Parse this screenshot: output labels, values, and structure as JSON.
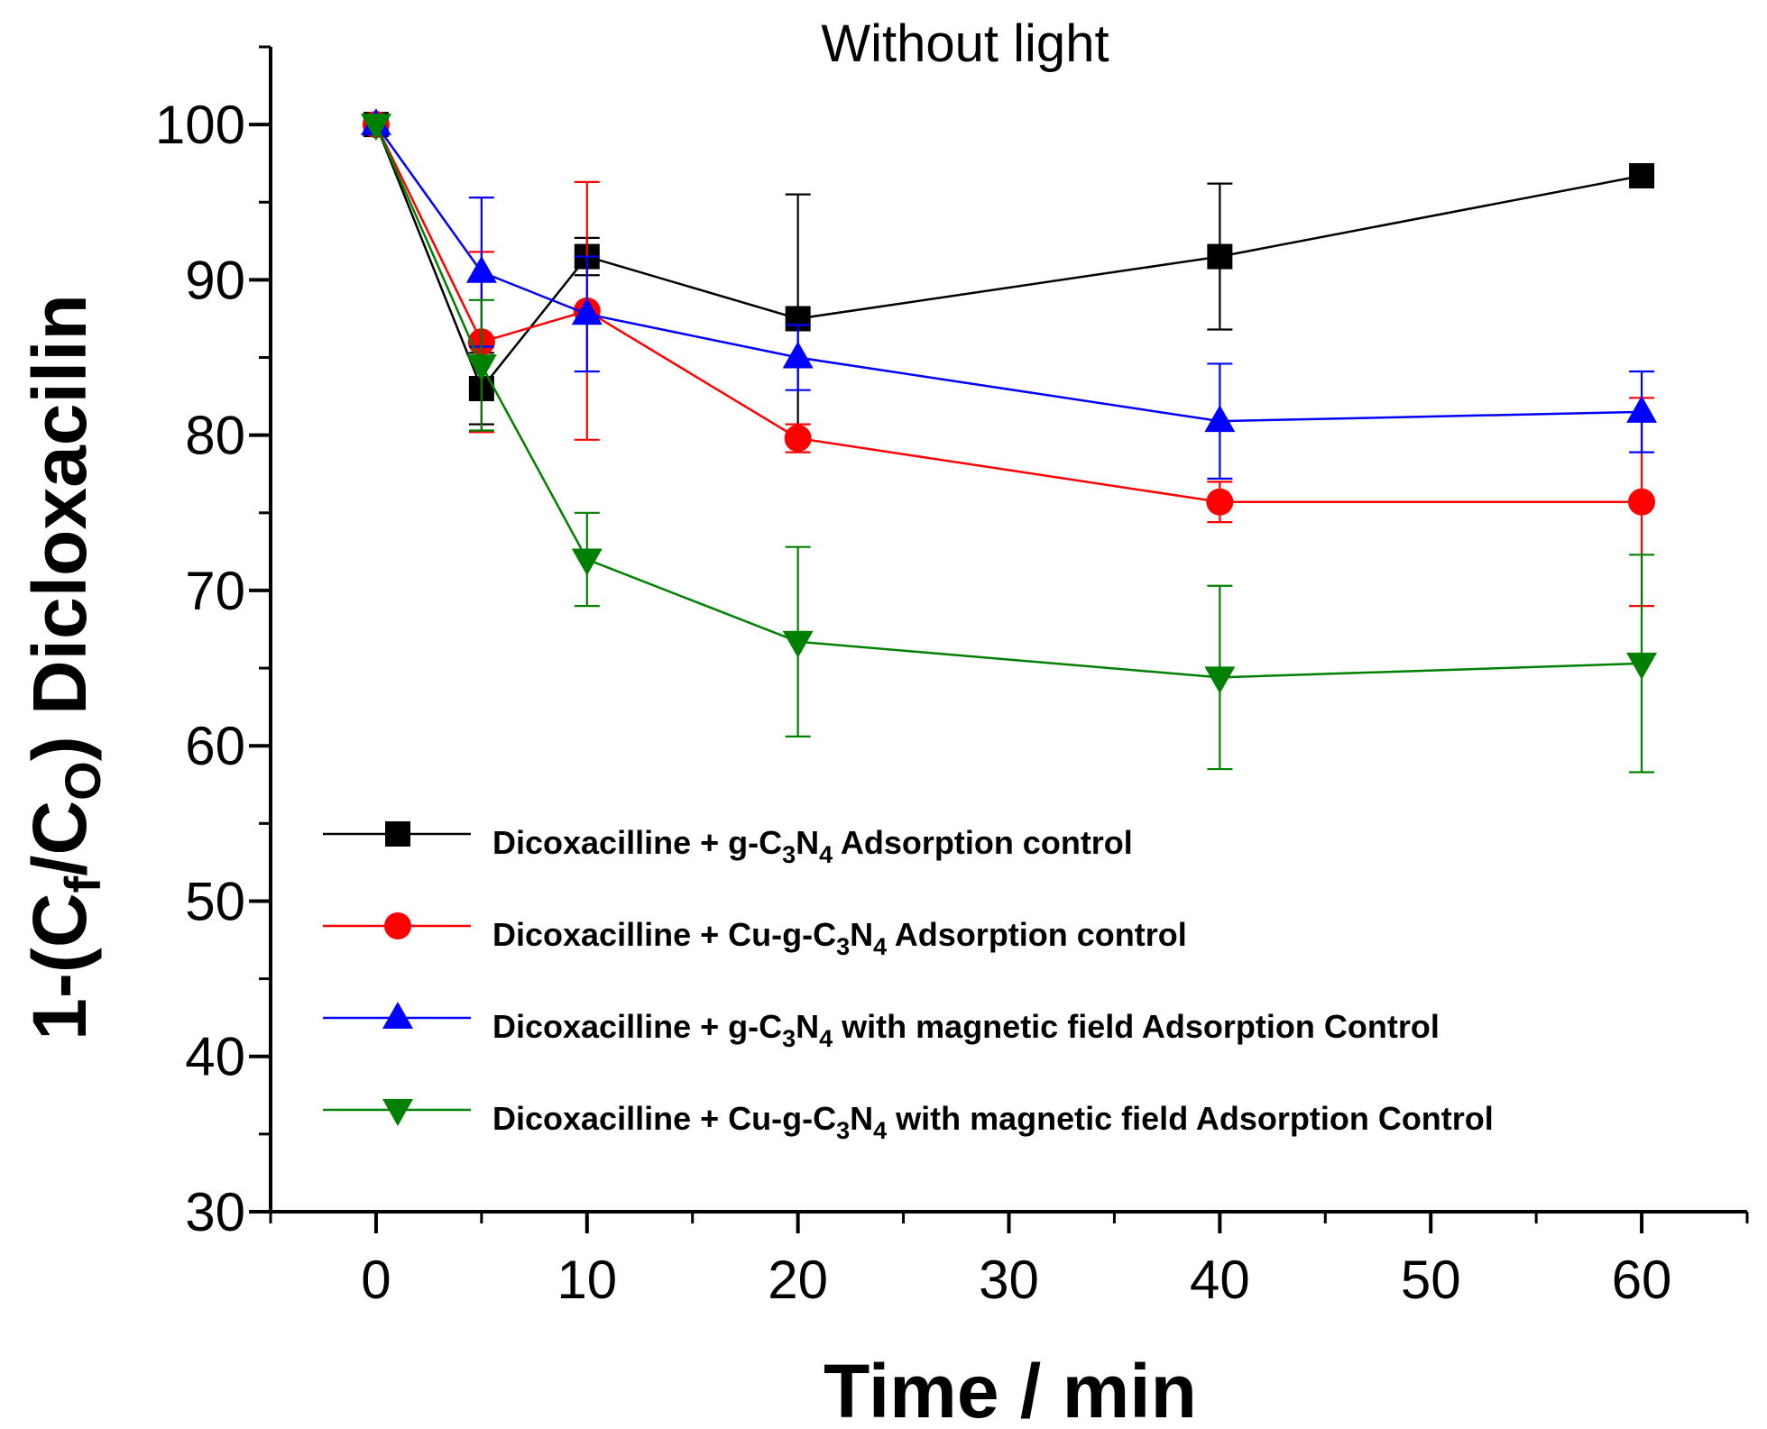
{
  "chart_data": {
    "type": "line",
    "title": "Without light",
    "xlabel": "Time / min",
    "ylabel": {
      "main": "1-(C",
      "sub1": "f",
      "mid": "/C",
      "sub2": "O",
      "end": ") Dicloxacilin"
    },
    "xlim": [
      -5,
      65
    ],
    "ylim": [
      30,
      105
    ],
    "xticks": [
      "0",
      "10",
      "20",
      "30",
      "40",
      "50",
      "60"
    ],
    "yticks": [
      "30",
      "40",
      "50",
      "60",
      "70",
      "80",
      "90",
      "100"
    ],
    "x": [
      0,
      5,
      10,
      20,
      40,
      60
    ],
    "legend_position": "lower-left",
    "series": [
      {
        "name": "Dicoxacilline + g-C3N4 Adsorption control",
        "legend_parts": {
          "a": "Dicoxacilline + g-C",
          "s1": "3",
          "b": "N",
          "s2": "4",
          "c": " Adsorption control"
        },
        "color": "#000000",
        "marker": "square",
        "values": [
          100,
          83,
          91.5,
          87.5,
          91.5,
          96.7
        ],
        "errors": [
          0,
          2.3,
          1.2,
          8,
          4.7,
          0
        ]
      },
      {
        "name": "Dicoxacilline + Cu-g-C3N4 Adsorption control",
        "legend_parts": {
          "a": "Dicoxacilline + Cu-g-C",
          "s1": "3",
          "b": "N",
          "s2": "4",
          "c": " Adsorption control"
        },
        "color": "#ff0000",
        "marker": "circle",
        "values": [
          100,
          86,
          88,
          79.8,
          75.7,
          75.7
        ],
        "errors": [
          0,
          5.8,
          8.3,
          0.9,
          1.3,
          6.7
        ]
      },
      {
        "name": "Dicoxacilline + g-C3N4 with magnetic field Adsorption Control",
        "legend_parts": {
          "a": "Dicoxacilline + g-C",
          "s1": "3",
          "b": "N",
          "s2": "4",
          "c": " with magnetic field Adsorption Control"
        },
        "color": "#0000ff",
        "marker": "triangle-up",
        "values": [
          100,
          90.5,
          87.8,
          85,
          80.9,
          81.5
        ],
        "errors": [
          0,
          4.8,
          3.7,
          2.1,
          3.7,
          2.6
        ]
      },
      {
        "name": "Dicoxacilline + Cu-g-C3N4 with magnetic field Adsorption Control",
        "legend_parts": {
          "a": "Dicoxacilline + Cu-g-C",
          "s1": "3",
          "b": "N",
          "s2": "4",
          "c": " with magnetic field Adsorption Control"
        },
        "color": "#008000",
        "marker": "triangle-down",
        "values": [
          100,
          84.5,
          72,
          66.7,
          64.4,
          65.3
        ],
        "errors": [
          0,
          4.2,
          3,
          6.1,
          5.9,
          7
        ]
      }
    ]
  }
}
